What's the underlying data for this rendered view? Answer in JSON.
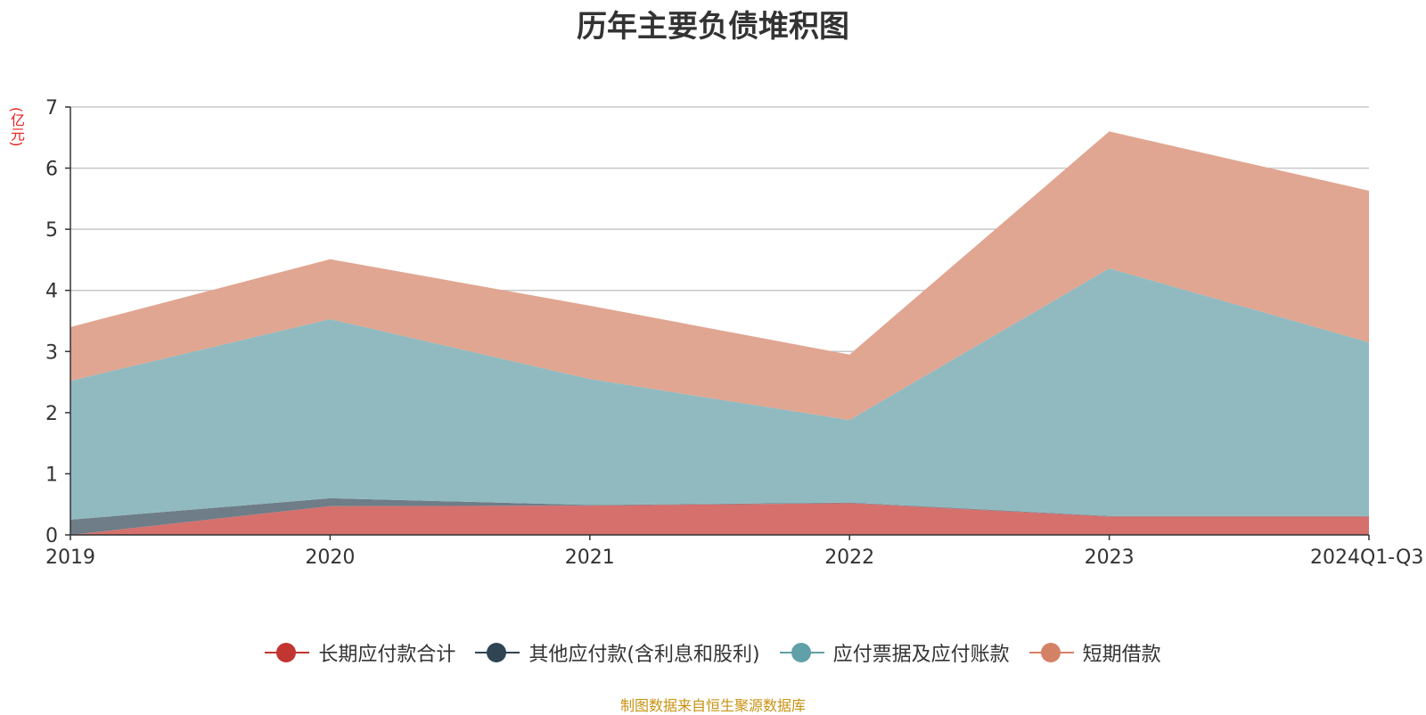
{
  "title": "历年主要负债堆积图",
  "unit_label": "(亿元)",
  "source": "制图数据来自恒生聚源数据库",
  "chart_data": {
    "type": "area",
    "stacked": true,
    "x": [
      "2019",
      "2020",
      "2021",
      "2022",
      "2023",
      "2024Q1-Q3"
    ],
    "ylim": [
      0,
      7
    ],
    "yticks": [
      0,
      1,
      2,
      3,
      4,
      5,
      6,
      7
    ],
    "grid": true,
    "legend_position": "bottom",
    "series": [
      {
        "name": "长期应付款合计",
        "color": "#c23531",
        "fill": "#d5706d",
        "values": [
          0.0,
          0.47,
          0.48,
          0.52,
          0.3,
          0.3
        ]
      },
      {
        "name": "其他应付款(含利息和股利)",
        "color": "#2f4554",
        "fill": "#6e7d87",
        "values": [
          0.25,
          0.13,
          0.01,
          0.01,
          0.01,
          0.01
        ]
      },
      {
        "name": "应付票据及应付账款",
        "color": "#61a0a8",
        "fill": "#90bac0",
        "values": [
          2.27,
          2.93,
          2.06,
          1.35,
          4.05,
          2.84
        ]
      },
      {
        "name": "短期借款",
        "color": "#d48265",
        "fill": "#e0a691",
        "values": [
          0.88,
          0.98,
          1.2,
          1.07,
          2.24,
          2.48
        ]
      }
    ]
  }
}
